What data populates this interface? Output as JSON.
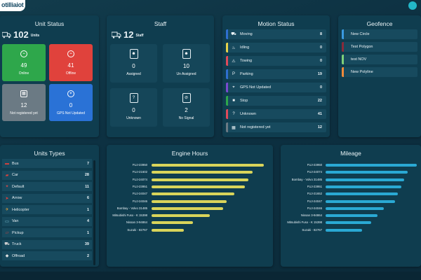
{
  "brand": {
    "logo_text": "otilliaiot"
  },
  "unit_status": {
    "title": "Unit Status",
    "total": "102",
    "total_label": "Units",
    "tiles": [
      {
        "value": "49",
        "label": "Online",
        "color": "#2ea74b",
        "icon": "signal-icon"
      },
      {
        "value": "41",
        "label": "Offline",
        "color": "#e0423c",
        "icon": "signal-off-icon"
      },
      {
        "value": "12",
        "label": "Not registered yet",
        "color": "#6b7a84",
        "icon": "device-icon"
      },
      {
        "value": "0",
        "label": "GPS Not Updated",
        "color": "#2a72d6",
        "icon": "gps-icon"
      }
    ]
  },
  "staff": {
    "title": "Staff",
    "total": "12",
    "total_label": "Staff",
    "tiles": [
      {
        "value": "0",
        "label": "Assigned",
        "icon": "id-badge-icon"
      },
      {
        "value": "10",
        "label": "Un Assigned",
        "icon": "id-badge-icon"
      },
      {
        "value": "0",
        "label": "Unknown",
        "icon": "unknown-badge-icon"
      },
      {
        "value": "2",
        "label": "No Signal",
        "icon": "no-signal-badge-icon"
      }
    ]
  },
  "motion_status": {
    "title": "Motion Status",
    "rows": [
      {
        "label": "Moving",
        "value": "8",
        "color": "#2f6fd0",
        "icon": "truck-icon"
      },
      {
        "label": "Idling",
        "value": "0",
        "color": "#e6d24a",
        "icon": "idle-icon"
      },
      {
        "label": "Towing",
        "value": "0",
        "color": "#e04a5a",
        "icon": "tow-icon"
      },
      {
        "label": "Parking",
        "value": "19",
        "color": "#2f6fd0",
        "icon": "parking-icon"
      },
      {
        "label": "GPS Not Updated",
        "value": "0",
        "color": "#7a4ad0",
        "icon": "gps-icon"
      },
      {
        "label": "Stop",
        "value": "22",
        "color": "#2ea74b",
        "icon": "stop-icon"
      },
      {
        "label": "Unknown",
        "value": "41",
        "color": "#e04a5a",
        "icon": "unknown-icon"
      },
      {
        "label": "Not registered yet",
        "value": "12",
        "color": "#6b7a84",
        "icon": "device-icon"
      }
    ]
  },
  "geofence": {
    "title": "Geofence",
    "rows": [
      {
        "label": "New Circle",
        "color": "#3a9ae0"
      },
      {
        "label": "Test Polygon",
        "color": "#8a2a3a"
      },
      {
        "label": "test NOV",
        "color": "#7ed07a"
      },
      {
        "label": "New Polyline",
        "color": "#f08a3a"
      }
    ]
  },
  "unit_types": {
    "title": "Units Types",
    "rows": [
      {
        "label": "Bus",
        "value": "7",
        "icon": "bus-icon"
      },
      {
        "label": "Car",
        "value": "28",
        "icon": "car-icon"
      },
      {
        "label": "Default",
        "value": "11",
        "icon": "default-icon"
      },
      {
        "label": "Arrow",
        "value": "6",
        "icon": "arrow-icon"
      },
      {
        "label": "Helicopter",
        "value": "1",
        "icon": "helicopter-icon"
      },
      {
        "label": "Van",
        "value": "4",
        "icon": "van-icon"
      },
      {
        "label": "Pickup",
        "value": "1",
        "icon": "pickup-icon"
      },
      {
        "label": "Truck",
        "value": "39",
        "icon": "truck-icon"
      },
      {
        "label": "Offroad",
        "value": "2",
        "icon": "offroad-icon"
      }
    ]
  },
  "chart_data": [
    {
      "type": "bar",
      "title": "Engine Hours",
      "orientation": "horizontal",
      "color": "#d9d45a",
      "categories": [
        "FUJ-23950",
        "FUJ-21602",
        "FUJ-24074",
        "FUJ-23951",
        "FUJ-24047",
        "FUJ-24046",
        "Bombay - Volvo 31485",
        "Mitsubishi Fuso - K 15398",
        "Nissan 3-94864",
        "Suzuki - 82767"
      ],
      "values": [
        100,
        90,
        86,
        83,
        74,
        67,
        64,
        52,
        37,
        29
      ],
      "xlim": [
        0,
        100
      ]
    },
    {
      "type": "bar",
      "title": "Mileage",
      "orientation": "horizontal",
      "color": "#2aa9d4",
      "categories": [
        "FUJ-23950",
        "FUJ-24074",
        "Bombay - Volvo 31485",
        "FUJ-23951",
        "FUJ-21652",
        "FUJ-24047",
        "FUJ-24046",
        "Nissan 3-94864",
        "Mitsubishi Fuso - K 15398",
        "Suzuki - 82767"
      ],
      "values": [
        100,
        90,
        86,
        83,
        79,
        76,
        64,
        57,
        50,
        40
      ],
      "xlim": [
        0,
        100
      ]
    }
  ]
}
